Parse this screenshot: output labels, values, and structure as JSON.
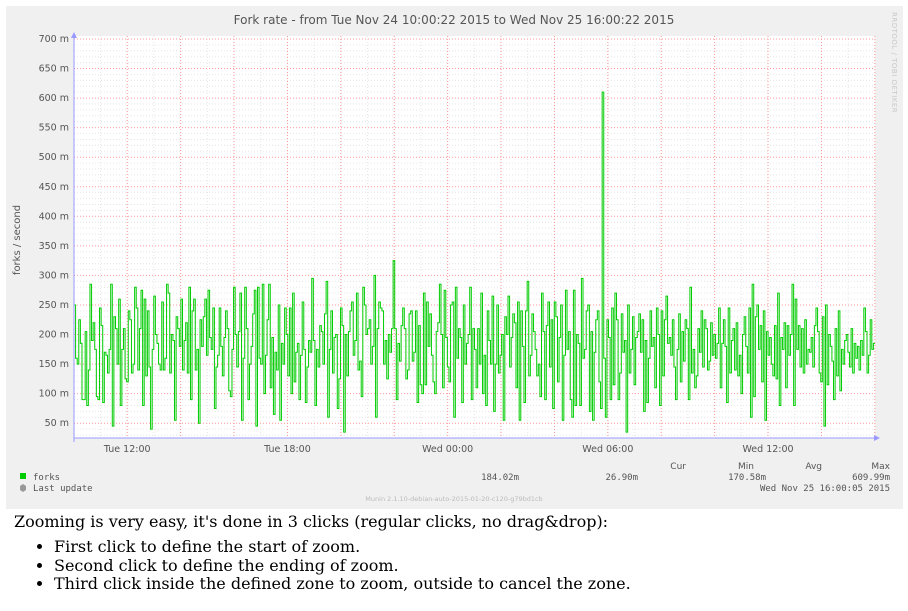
{
  "colors": {
    "series": "#00cc00",
    "grid_major": "#ff9999",
    "grid_minor": "#e6e6e6",
    "axis": "#9999ff",
    "canvas": "#ffffff",
    "panel": "#f0f0f0",
    "text": "#555555"
  },
  "watermark": "RRDTOOL / TOBI OETIKER",
  "legend": {
    "headers": {
      "cur": "Cur",
      "min": "Min",
      "avg": "Avg",
      "max": "Max"
    },
    "series_label": "forks",
    "series_cur": "184.02m",
    "series_min": "26.90m",
    "series_avg": "170.58m",
    "series_max": "609.99m",
    "last_update_label": "Last update",
    "last_update_value": "Wed Nov 25 16:00:05 2015"
  },
  "footer": "Munin 2.1.10-debian-auto-2015-01-20-c120-g79bd1cb",
  "chart_data": {
    "type": "line",
    "title": "Fork rate - from Tue Nov 24 10:00:22 2015 to Wed Nov 25 16:00:22 2015",
    "ylabel": "forks / second",
    "xlabel": "",
    "ylim": [
      25,
      705
    ],
    "ytick_values": [
      50,
      100,
      150,
      200,
      250,
      300,
      350,
      400,
      450,
      500,
      550,
      600,
      650,
      700
    ],
    "ytick_labels": [
      "50 m",
      "100 m",
      "150 m",
      "200 m",
      "250 m",
      "300 m",
      "350 m",
      "400 m",
      "450 m",
      "500 m",
      "550 m",
      "600 m",
      "650 m",
      "700 m"
    ],
    "x_start": "Tue Nov 24 10:00:22 2015",
    "x_end": "Wed Nov 25 16:00:22 2015",
    "xtick_labels": [
      "Tue 12:00",
      "Tue 18:00",
      "Wed 00:00",
      "Wed 06:00",
      "Wed 12:00"
    ],
    "xtick_values": [
      "Tue Nov 24 12:00 2015",
      "Tue Nov 24 18:00 2015",
      "Wed Nov 25 00:00 2015",
      "Wed Nov 25 06:00 2015",
      "Wed Nov 25 12:00 2015"
    ],
    "grid": true,
    "series": [
      {
        "name": "forks",
        "y_unit": "m",
        "values": [
          250,
          160,
          150,
          225,
          185,
          90,
          90,
          205,
          80,
          140,
          285,
          190,
          220,
          175,
          95,
          90,
          245,
          215,
          85,
          170,
          165,
          135,
          175,
          285,
          45,
          230,
          210,
          150,
          260,
          80,
          175,
          210,
          125,
          120,
          240,
          225,
          135,
          150,
          280,
          245,
          140,
          210,
          275,
          80,
          260,
          130,
          240,
          145,
          40,
          175,
          265,
          200,
          185,
          150,
          140,
          255,
          140,
          160,
          285,
          270,
          135,
          200,
          190,
          55,
          230,
          210,
          180,
          260,
          140,
          190,
          220,
          135,
          280,
          90,
          240,
          260,
          140,
          175,
          50,
          225,
          180,
          230,
          260,
          165,
          275,
          195,
          175,
          245,
          75,
          145,
          165,
          245,
          180,
          130,
          195,
          240,
          210,
          105,
          95,
          175,
          280,
          200,
          145,
          205,
          270,
          55,
          160,
          280,
          210,
          90,
          150,
          180,
          235,
          275,
          45,
          280,
          160,
          150,
          285,
          100,
          165,
          225,
          285,
          110,
          195,
          65,
          170,
          140,
          250,
          55,
          185,
          150,
          245,
          200,
          130,
          245,
          100,
          270,
          120,
          170,
          185,
          90,
          165,
          255,
          175,
          85,
          145,
          190,
          170,
          295,
          190,
          80,
          175,
          145,
          215,
          205,
          150,
          235,
          290,
          60,
          175,
          240,
          135,
          195,
          200,
          75,
          125,
          245,
          215,
          35,
          200,
          130,
          205,
          240,
          255,
          165,
          190,
          270,
          140,
          155,
          95,
          280,
          250,
          200,
          210,
          225,
          150,
          180,
          300,
          60,
          210,
          255,
          245,
          240,
          150,
          190,
          125,
          200,
          170,
          210,
          325,
          210,
          90,
          185,
          155,
          215,
          245,
          210,
          125,
          140,
          235,
          240,
          155,
          170,
          240,
          85,
          215,
          115,
          100,
          270,
          115,
          255,
          180,
          235,
          165,
          120,
          100,
          205,
          220,
          285,
          200,
          110,
          275,
          195,
          145,
          120,
          250,
          255,
          60,
          280,
          160,
          210,
          195,
          85,
          250,
          150,
          185,
          200,
          280,
          90,
          210,
          175,
          110,
          210,
          150,
          270,
          100,
          165,
          80,
          240,
          190,
          150,
          265,
          70,
          150,
          250,
          135,
          165,
          200,
          55,
          230,
          200,
          265,
          145,
          195,
          235,
          220,
          110,
          255,
          55,
          240,
          180,
          85,
          240,
          290,
          130,
          165,
          235,
          205,
          175,
          130,
          150,
          95,
          270,
          205,
          90,
          215,
          255,
          145,
          225,
          75,
          255,
          230,
          120,
          195,
          250,
          55,
          165,
          275,
          175,
          205,
          90,
          60,
          275,
          80,
          200,
          185,
          80,
          295,
          160,
          175,
          240,
          250,
          70,
          205,
          55,
          170,
          225,
          240,
          120,
          75,
          610,
          160,
          60,
          225,
          195,
          90,
          245,
          115,
          270,
          225,
          90,
          135,
          235,
          170,
          190,
          35,
          250,
          135,
          175,
          230,
          115,
          195,
          205,
          235,
          170,
          225,
          70,
          190,
          85,
          160,
          240,
          180,
          195,
          110,
          245,
          200,
          80,
          240,
          130,
          225,
          265,
          185,
          195,
          165,
          225,
          145,
          90,
          175,
          235,
          120,
          205,
          155,
          225,
          210,
          90,
          280,
          135,
          175,
          110,
          130,
          210,
          170,
          240,
          145,
          225,
          210,
          140,
          155,
          220,
          165,
          200,
          160,
          185,
          245,
          110,
          185,
          225,
          180,
          85,
          245,
          135,
          190,
          210,
          140,
          220,
          130,
          165,
          100,
          200,
          230,
          180,
          135,
          245,
          60,
          285,
          95,
          230,
          250,
          175,
          215,
          120,
          240,
          55,
          205,
          165,
          195,
          150,
          130,
          215,
          125,
          270,
          80,
          195,
          175,
          220,
          110,
          215,
          165,
          200,
          285,
          80,
          260,
          175,
          215,
          145,
          210,
          135,
          225,
          150,
          175,
          170,
          195,
          145,
          215,
          245,
          205,
          135,
          120,
          230,
          45,
          250,
          115,
          200,
          180,
          155,
          90,
          210,
          130,
          240,
          105,
          175,
          150,
          190,
          200,
          170,
          145,
          210,
          135,
          185,
          160,
          180,
          140,
          190,
          165,
          245,
          205,
          135,
          165,
          225,
          175,
          185
        ]
      }
    ]
  },
  "instructions": {
    "intro": "Zooming is very easy, it's done in 3 clicks (regular clicks, no drag&drop):",
    "steps": [
      "First click to define the start of zoom.",
      "Second click to define the ending of zoom.",
      "Third click inside the defined zone to zoom, outside to cancel the zone."
    ]
  }
}
